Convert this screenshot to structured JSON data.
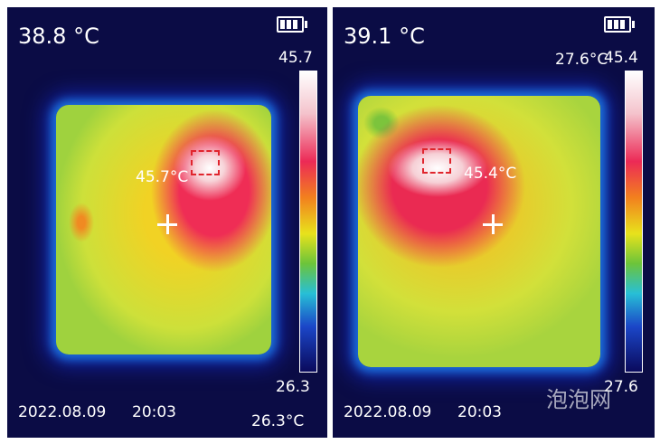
{
  "panels": [
    {
      "center_temp": "38.8 °C",
      "scale_max": "45.7",
      "scale_min": "26.3",
      "hotspot_temp": "45.7°C",
      "min_spot_temp": "26.3°C",
      "date": "2022.08.09",
      "time": "20:03"
    },
    {
      "center_temp": "39.1 °C",
      "scale_max": "45.4",
      "scale_min": "27.6",
      "hotspot_temp": "45.4°C",
      "min_spot_temp": "27.6°C",
      "date": "2022.08.09",
      "time": "20:03"
    }
  ],
  "watermark": "泡泡网"
}
